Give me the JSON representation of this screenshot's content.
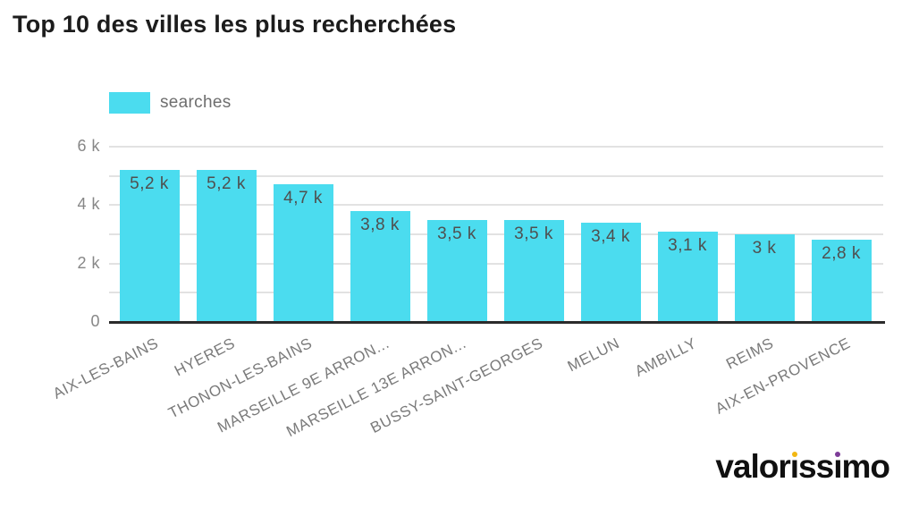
{
  "title": "Top 10 des villes les plus recherchées",
  "legend": {
    "label": "searches",
    "swatch_color": "#4BDCEF"
  },
  "chart_data": {
    "type": "bar",
    "title": "Top 10 des villes les plus recherchées",
    "series_name": "searches",
    "categories": [
      "AIX-LES-BAINS",
      "HYERES",
      "THONON-LES-BAINS",
      "MARSEILLE 9E ARRON...",
      "MARSEILLE 13E ARRON...",
      "BUSSY-SAINT-GEORGES",
      "MELUN",
      "AMBILLY",
      "REIMS",
      "AIX-EN-PROVENCE"
    ],
    "values": [
      5200,
      5200,
      4700,
      3800,
      3500,
      3500,
      3400,
      3100,
      3000,
      2800
    ],
    "value_labels": [
      "5,2 k",
      "5,2 k",
      "4,7 k",
      "3,8 k",
      "3,5 k",
      "3,5 k",
      "3,4 k",
      "3,1 k",
      "3 k",
      "2,8 k"
    ],
    "xlabel": "",
    "ylabel": "",
    "ylim": [
      0,
      6000
    ],
    "grid_interval": 1000,
    "grid": true,
    "ytick_values": [
      0,
      2000,
      4000,
      6000
    ],
    "ytick_labels": [
      "0",
      "2 k",
      "4 k",
      "6 k"
    ],
    "legend_position": "top-left",
    "bar_color": "#4BDCEF"
  },
  "branding": {
    "logo_text": "valorissimo",
    "first_i_dot_color": "#F2B712",
    "second_i_dot_color": "#7D3C98",
    "logo_text_color": "#101010"
  },
  "colors": {
    "background": "#ffffff",
    "bar": "#4BDCEF",
    "gridline": "#e2e2e2",
    "axis_line": "#2b2b2b",
    "axis_text": "#878787",
    "value_text": "#4f4f4f",
    "title_text": "#1c1c1c"
  }
}
